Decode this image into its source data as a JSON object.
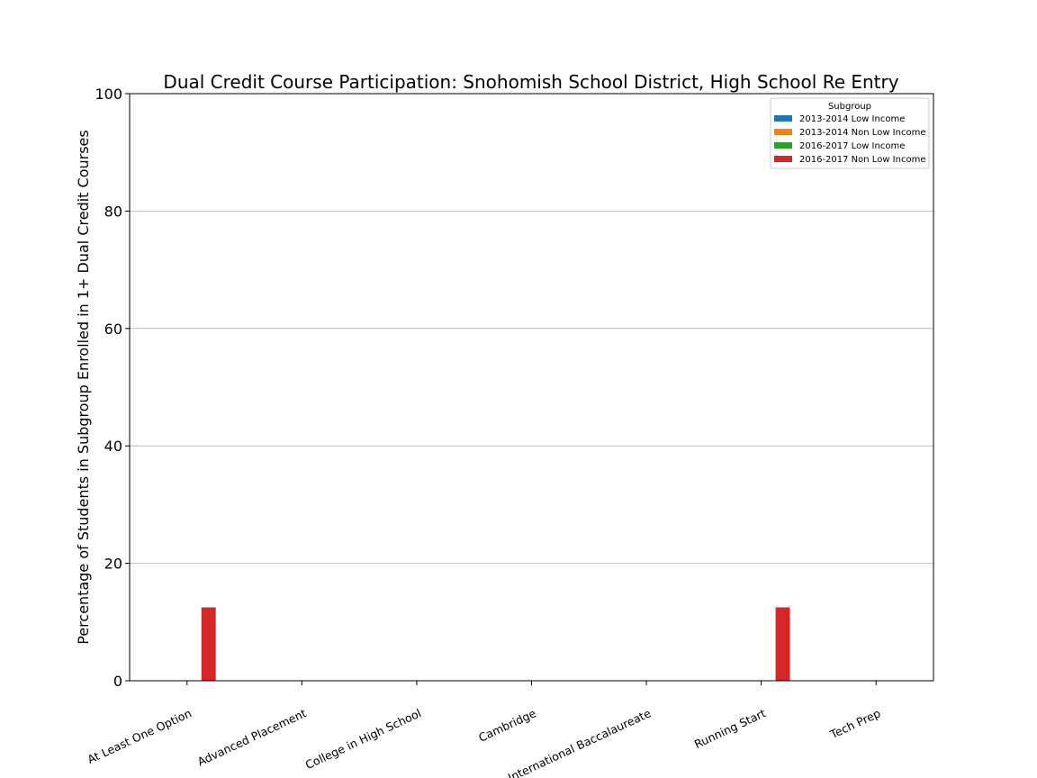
{
  "chart_data": {
    "type": "bar",
    "title": "Dual Credit Course Participation: Snohomish School District, High School Re Entry",
    "xlabel": "",
    "ylabel": "Percentage of Students in Subgroup Enrolled in 1+ Dual Credit Courses",
    "ylim": [
      0,
      100
    ],
    "yticks": [
      "0",
      "20",
      "40",
      "60",
      "80",
      "100"
    ],
    "grid": "y",
    "legend_title": "Subgroup",
    "legend_position": "top-right",
    "categories": [
      "At Least One Option",
      "Advanced Placement",
      "College in High School",
      "Cambridge",
      "International Baccalaureate",
      "Running Start",
      "Tech Prep"
    ],
    "series": [
      {
        "name": "2013-2014 Low Income",
        "color": "#1f77b4",
        "values": [
          0,
          0,
          0,
          0,
          0,
          0,
          0
        ]
      },
      {
        "name": "2013-2014 Non Low Income",
        "color": "#ff7f0e",
        "values": [
          0,
          0,
          0,
          0,
          0,
          0,
          0
        ]
      },
      {
        "name": "2016-2017 Low Income",
        "color": "#2ca02c",
        "values": [
          0,
          0,
          0,
          0,
          0,
          0,
          0
        ]
      },
      {
        "name": "2016-2017 Non Low Income",
        "color": "#d62728",
        "values": [
          12.5,
          0,
          0,
          0,
          0,
          12.5,
          0
        ]
      }
    ]
  }
}
